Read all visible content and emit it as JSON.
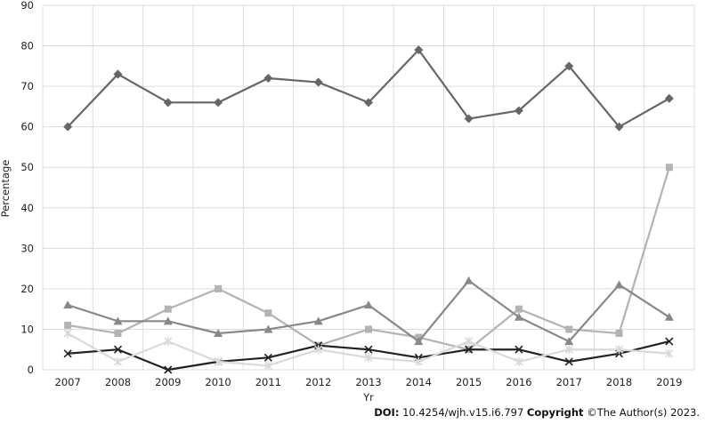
{
  "chart_data": {
    "type": "line",
    "xlabel": "Yr",
    "ylabel": "Percentage",
    "ylim": [
      0,
      90
    ],
    "yticks": [
      0,
      10,
      20,
      30,
      40,
      50,
      60,
      70,
      80,
      90
    ],
    "grid": true,
    "legend": "none",
    "categories": [
      "2007",
      "2008",
      "2009",
      "2010",
      "2011",
      "2012",
      "2013",
      "2014",
      "2015",
      "2016",
      "2017",
      "2018",
      "2019"
    ],
    "series": [
      {
        "marker": "diamond",
        "color": "#666666",
        "values": [
          60,
          73,
          66,
          66,
          72,
          71,
          66,
          79,
          62,
          64,
          75,
          60,
          67
        ]
      },
      {
        "marker": "square",
        "color": "#b3b3b3",
        "values": [
          11,
          9,
          15,
          20,
          14,
          6,
          10,
          8,
          5,
          15,
          10,
          9,
          50
        ]
      },
      {
        "marker": "triangle",
        "color": "#888888",
        "values": [
          16,
          12,
          12,
          9,
          10,
          12,
          16,
          7,
          22,
          13,
          7,
          21,
          13
        ]
      },
      {
        "marker": "x",
        "color": "#222222",
        "values": [
          4,
          5,
          0,
          2,
          3,
          6,
          5,
          3,
          5,
          5,
          2,
          4,
          7
        ]
      },
      {
        "marker": "star",
        "color": "#d9d9d9",
        "values": [
          9,
          2,
          7,
          2,
          1,
          5,
          3,
          2,
          7,
          2,
          5,
          5,
          4
        ]
      }
    ]
  },
  "footer": {
    "doi_label": "DOI:",
    "doi_value": "10.4254/wjh.v15.i6.797",
    "copyright_label": "Copyright",
    "copyright_text": "©The Author(s) 2023."
  }
}
